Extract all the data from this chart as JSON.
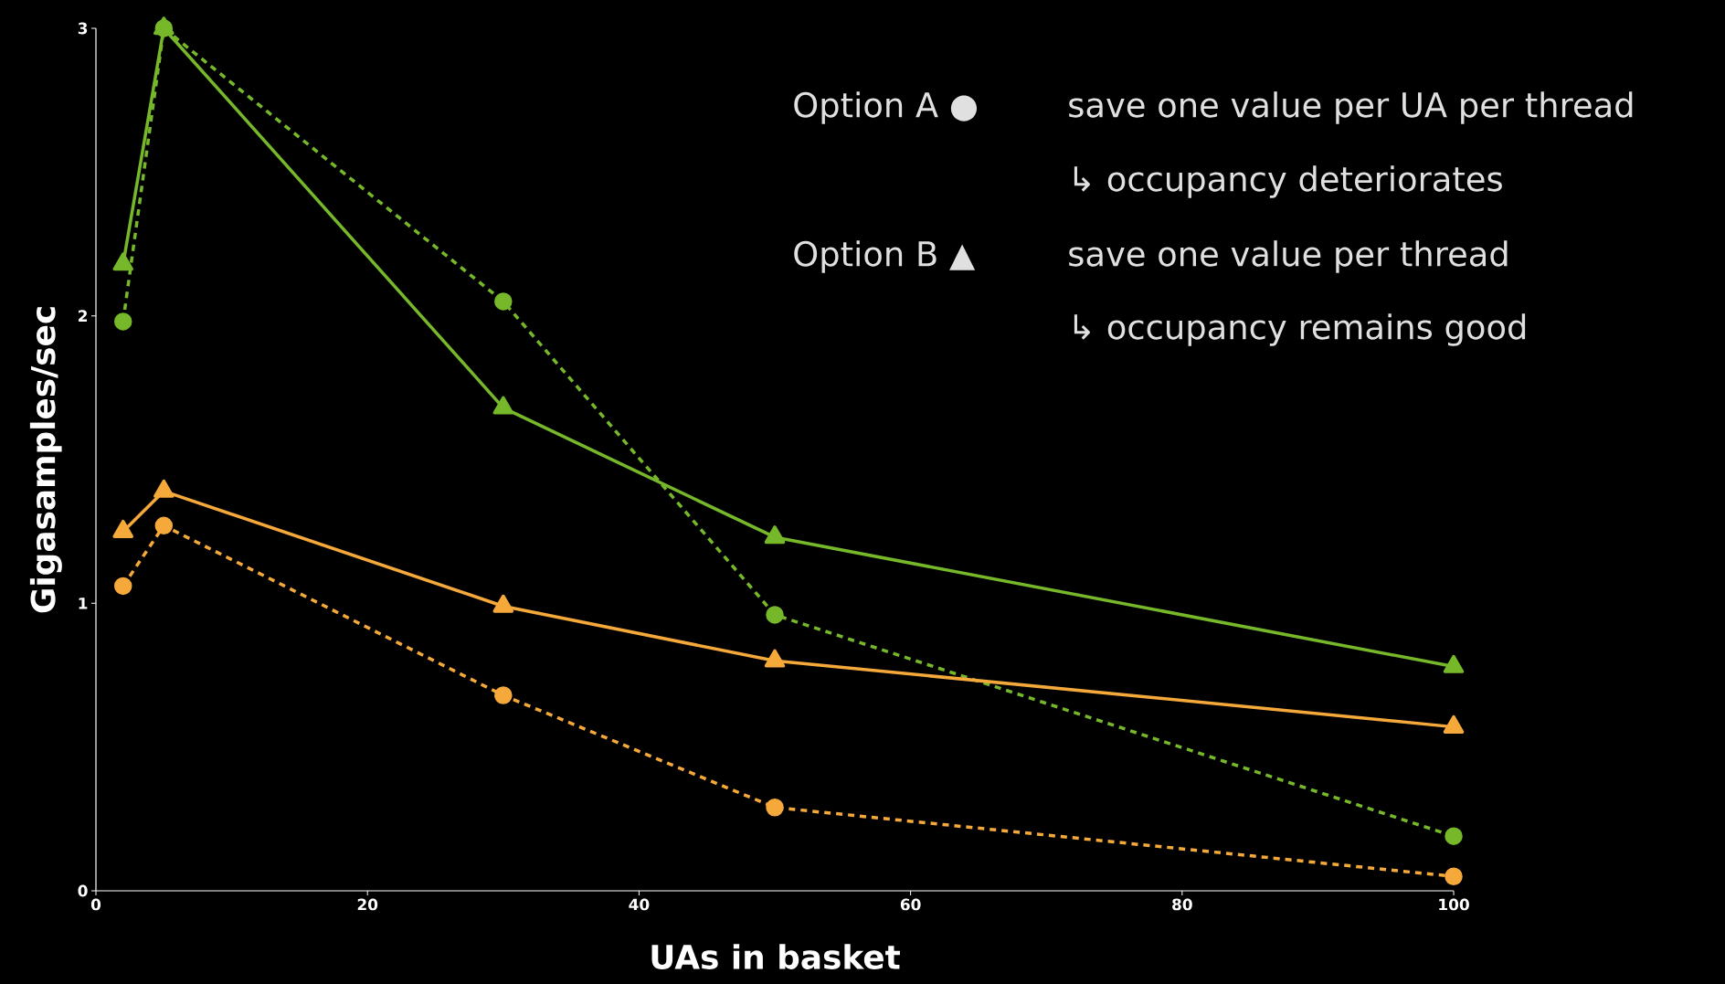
{
  "chart_data": {
    "type": "line",
    "xlabel": "UAs in basket",
    "ylabel": "Gigasamples/sec",
    "x": [
      2,
      5,
      30,
      50,
      100
    ],
    "xlim": [
      0,
      100
    ],
    "xticks": [
      0,
      20,
      40,
      60,
      80,
      100
    ],
    "ylim": [
      0,
      3
    ],
    "yticks": [
      0,
      1,
      2,
      3
    ],
    "grid": false,
    "series": [
      {
        "color": "#76b82a",
        "marker": "triangle",
        "line_style": "solid",
        "values": [
          2.18,
          3,
          1.68,
          1.23,
          0.78
        ]
      },
      {
        "color": "#76b82a",
        "marker": "circle",
        "line_style": "dashed",
        "values": [
          1.98,
          3,
          2.05,
          0.96,
          0.19
        ]
      },
      {
        "color": "#f5a93a",
        "marker": "triangle",
        "line_style": "solid",
        "values": [
          1.25,
          1.39,
          0.99,
          0.8,
          0.57
        ]
      },
      {
        "color": "#f5a93a",
        "marker": "circle",
        "line_style": "dashed",
        "values": [
          1.06,
          1.27,
          0.68,
          0.29,
          0.05
        ]
      }
    ],
    "annotations": [
      "Option A ●",
      "save one value per UA per thread",
      "↳ occupancy deteriorates",
      "Option B ▲",
      "save one value per thread",
      "↳ occupancy remains good"
    ]
  }
}
